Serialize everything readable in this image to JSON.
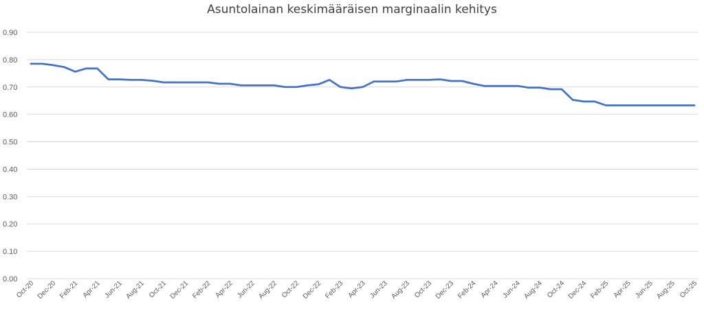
{
  "chart_data": {
    "type": "line",
    "title": "Asuntolainan keskimääräisen marginaalin kehitys",
    "xlabel": "",
    "ylabel": "",
    "ylim": [
      0.0,
      0.9
    ],
    "yticks": [
      "0.00",
      "0.10",
      "0.20",
      "0.30",
      "0.40",
      "0.50",
      "0.60",
      "0.70",
      "0.80",
      "0.90"
    ],
    "grid": true,
    "legend": "none",
    "line_color": "#4472c4",
    "x": [
      "Oct-20",
      "Nov-20",
      "Dec-20",
      "Jan-21",
      "Feb-21",
      "Mar-21",
      "Apr-21",
      "May-21",
      "Jun-21",
      "Jul-21",
      "Aug-21",
      "Sep-21",
      "Oct-21",
      "Nov-21",
      "Dec-21",
      "Jan-22",
      "Feb-22",
      "Mar-22",
      "Apr-22",
      "May-22",
      "Jun-22",
      "Jul-22",
      "Aug-22",
      "Sep-22",
      "Oct-22",
      "Nov-22",
      "Dec-22",
      "Jan-23",
      "Feb-23",
      "Mar-23",
      "Apr-23",
      "May-23",
      "Jun-23",
      "Jul-23",
      "Aug-23",
      "Sep-23",
      "Oct-23",
      "Nov-23",
      "Dec-23",
      "Jan-24",
      "Feb-24",
      "Mar-24",
      "Apr-24",
      "May-24",
      "Jun-24",
      "Jul-24",
      "Aug-24",
      "Sep-24",
      "Oct-24",
      "Nov-24",
      "Dec-24",
      "Jan-25",
      "Feb-25",
      "Mar-25",
      "Apr-25",
      "May-25",
      "Jun-25",
      "Jul-25",
      "Aug-25",
      "Sep-25",
      "Oct-25"
    ],
    "x_tick_labels": [
      "Oct-20",
      "Dec-20",
      "Feb-21",
      "Apr-21",
      "Jun-21",
      "Aug-21",
      "Oct-21",
      "Dec-21",
      "Feb-22",
      "Apr-22",
      "Jun-22",
      "Aug-22",
      "Oct-22",
      "Dec-22",
      "Feb-23",
      "Apr-23",
      "Jun-23",
      "Aug-23",
      "Oct-23",
      "Dec-23",
      "Feb-24",
      "Apr-24",
      "Jun-24",
      "Aug-24",
      "Oct-24",
      "Dec-24",
      "Feb-25",
      "Apr-25",
      "Jun-25",
      "Aug-25",
      "Oct-25"
    ],
    "series": [
      {
        "values": [
          0.785,
          0.785,
          0.78,
          0.773,
          0.756,
          0.768,
          0.768,
          0.728,
          0.728,
          0.726,
          0.726,
          0.723,
          0.717,
          0.717,
          0.717,
          0.717,
          0.717,
          0.712,
          0.712,
          0.706,
          0.706,
          0.706,
          0.706,
          0.7,
          0.7,
          0.706,
          0.71,
          0.726,
          0.7,
          0.695,
          0.7,
          0.72,
          0.72,
          0.72,
          0.726,
          0.726,
          0.726,
          0.728,
          0.722,
          0.722,
          0.712,
          0.704,
          0.704,
          0.704,
          0.704,
          0.698,
          0.698,
          0.692,
          0.692,
          0.653,
          0.647,
          0.647,
          0.633,
          0.633,
          0.633,
          0.633,
          0.633,
          0.633,
          0.633,
          0.633,
          0.633
        ]
      }
    ]
  }
}
